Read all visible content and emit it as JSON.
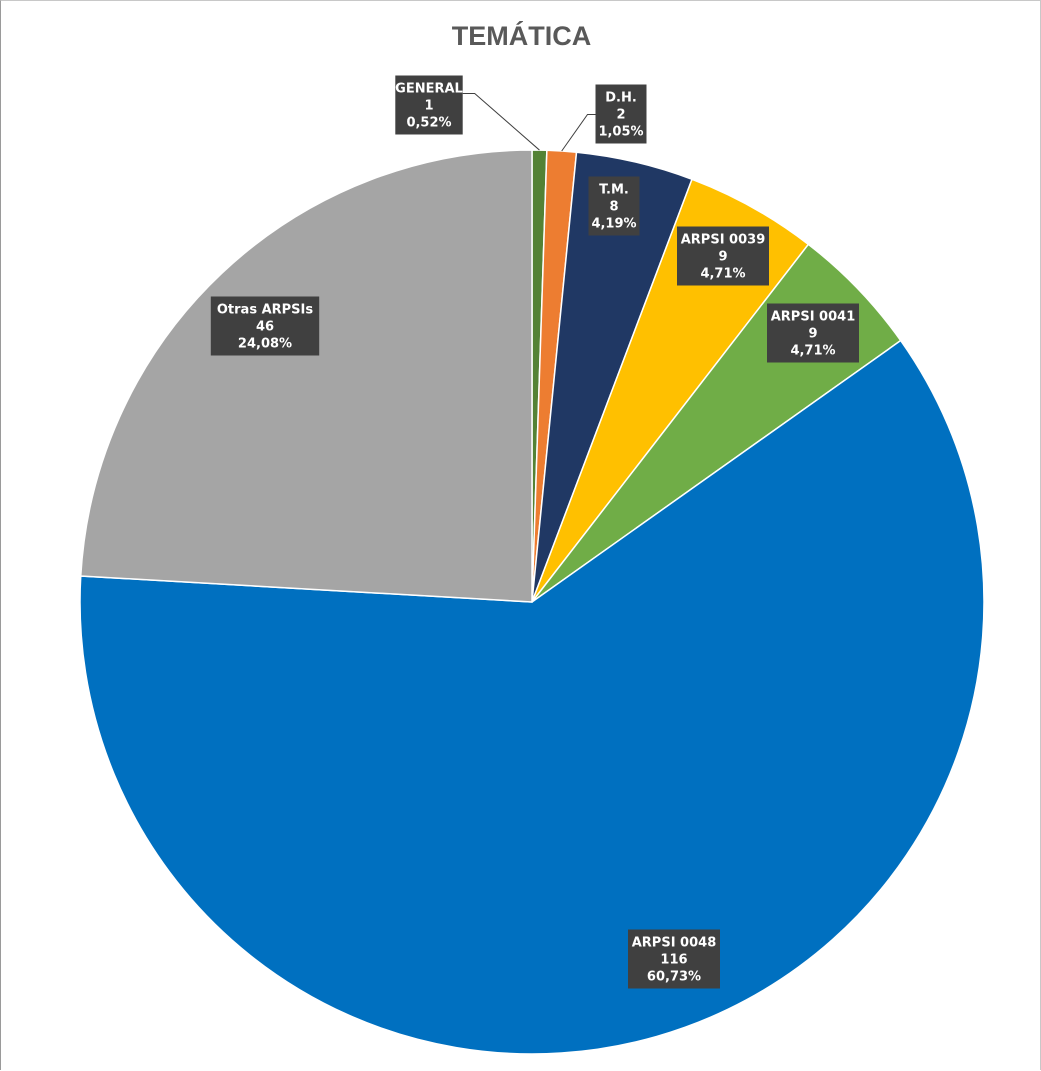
{
  "chart_data": {
    "type": "pie",
    "title": "TEMÁTICA",
    "slices": [
      {
        "label": "GENERAL",
        "value": 1,
        "percent": "0,52%",
        "color": "#548235"
      },
      {
        "label": "D.H.",
        "value": 2,
        "percent": "1,05%",
        "color": "#ED7D31"
      },
      {
        "label": "T.M.",
        "value": 8,
        "percent": "4,19%",
        "color": "#203864"
      },
      {
        "label": "ARPSI 0039",
        "value": 9,
        "percent": "4,71%",
        "color": "#FFC000"
      },
      {
        "label": "ARPSI 0041",
        "value": 9,
        "percent": "4,71%",
        "color": "#70AD47"
      },
      {
        "label": "ARPSI 0048",
        "value": 116,
        "percent": "60,73%",
        "color": "#0070C0"
      },
      {
        "label": "Otras ARPSIs",
        "value": 46,
        "percent": "24,08%",
        "color": "#A5A5A5"
      }
    ],
    "start_angle": "top",
    "direction": "clockwise",
    "label_box_color": "#404040",
    "label_text_color": "#FFFFFF"
  }
}
